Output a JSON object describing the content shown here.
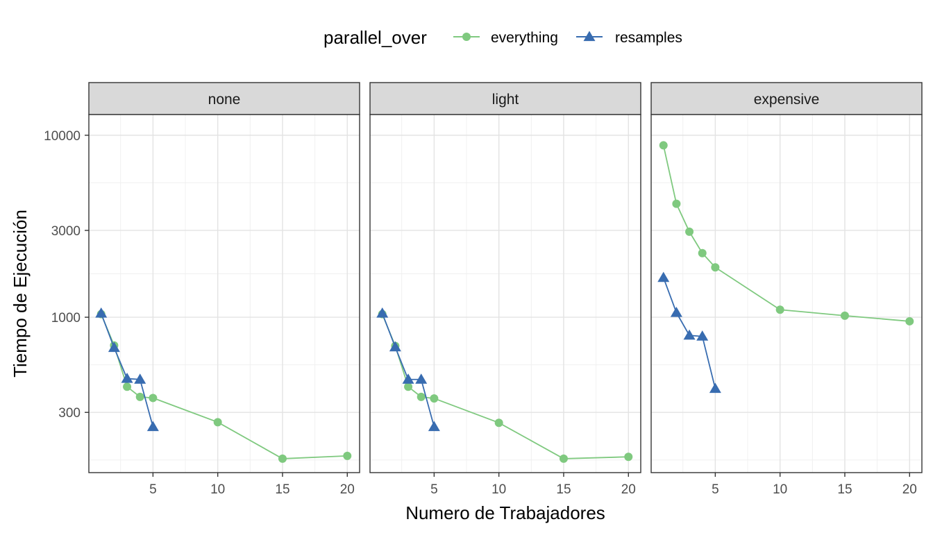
{
  "chart_data": {
    "type": "line",
    "legend": {
      "title": "parallel_over",
      "position": "top",
      "entries": [
        {
          "name": "everything",
          "color": "#7fc97f",
          "marker": "circle"
        },
        {
          "name": "resamples",
          "color": "#386cb0",
          "marker": "triangle"
        }
      ]
    },
    "xlabel": "Numero de Trabajadores",
    "ylabel": "Tiempo de Ejecución",
    "y_scale": "log10",
    "ylim": [
      140,
      13000
    ],
    "xlim": [
      0.05,
      20.95
    ],
    "x_ticks": [
      5,
      10,
      15,
      20
    ],
    "x_tick_labels": [
      "5",
      "10",
      "15",
      "20"
    ],
    "y_ticks": [
      300,
      1000,
      3000,
      10000
    ],
    "y_tick_labels": [
      "300",
      "1000",
      "3000",
      "10000"
    ],
    "grid": true,
    "facets": [
      {
        "label": "none",
        "series": [
          {
            "name": "everything",
            "x": [
              1,
              2,
              3,
              4,
              5,
              10,
              15,
              20
            ],
            "y": [
              1040,
              700,
              415,
              365,
              360,
              265,
              167,
              173
            ]
          },
          {
            "name": "resamples",
            "x": [
              1,
              2,
              3,
              4,
              5
            ],
            "y": [
              1050,
              680,
              460,
              455,
              250
            ]
          }
        ]
      },
      {
        "label": "light",
        "series": [
          {
            "name": "everything",
            "x": [
              1,
              2,
              3,
              4,
              5,
              10,
              15,
              20
            ],
            "y": [
              1040,
              695,
              415,
              365,
              358,
              263,
              167,
              171
            ]
          },
          {
            "name": "resamples",
            "x": [
              1,
              2,
              3,
              4,
              5
            ],
            "y": [
              1050,
              685,
              455,
              455,
              250
            ]
          }
        ]
      },
      {
        "label": "expensive",
        "series": [
          {
            "name": "everything",
            "x": [
              1,
              2,
              3,
              4,
              5,
              10,
              15,
              20
            ],
            "y": [
              8800,
              4200,
              2950,
              2250,
              1880,
              1100,
              1020,
              950
            ]
          },
          {
            "name": "resamples",
            "x": [
              1,
              2,
              3,
              4,
              5
            ],
            "y": [
              1650,
              1060,
              795,
              785,
              405
            ]
          }
        ]
      }
    ]
  }
}
